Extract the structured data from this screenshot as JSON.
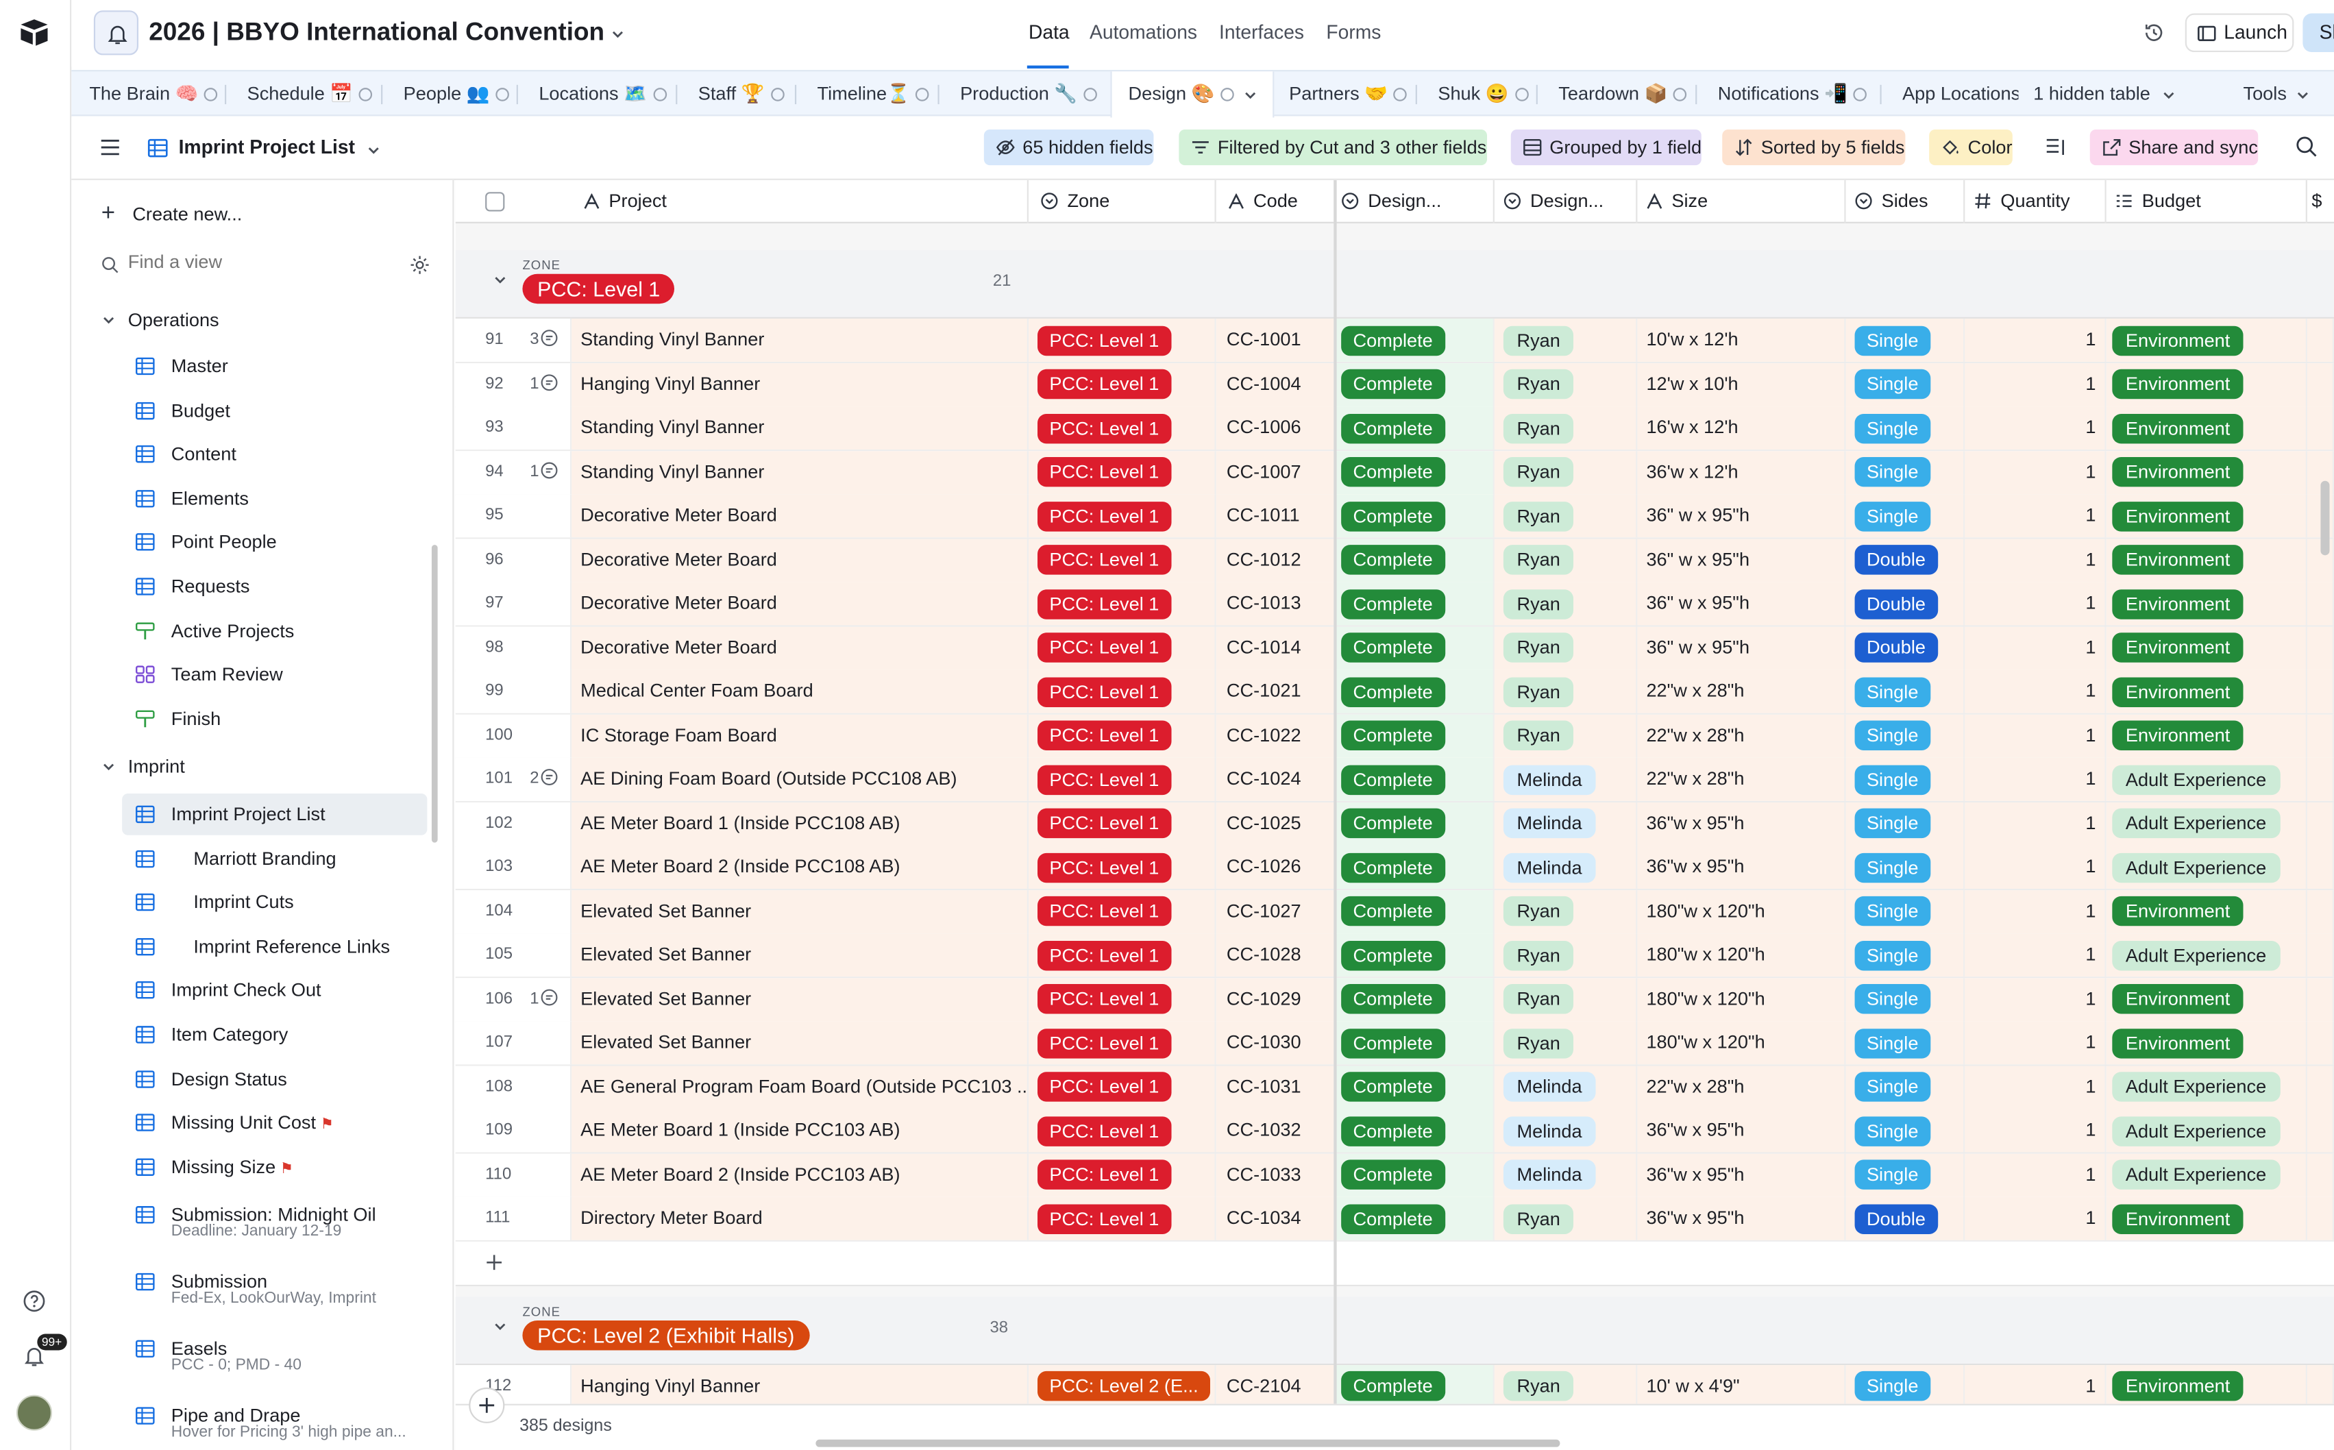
{
  "header": {
    "base_title": "2026 | BBYO International Convention",
    "nav": [
      "Data",
      "Automations",
      "Interfaces",
      "Forms"
    ],
    "active_nav": "Data",
    "launch_label": "Launch",
    "share_label": "Share",
    "notifications_badge": "99+"
  },
  "tabs": [
    {
      "label": "The Brain 🧠"
    },
    {
      "label": "Schedule 📅"
    },
    {
      "label": "People 👥"
    },
    {
      "label": "Locations 🗺️"
    },
    {
      "label": "Staff 🏆"
    },
    {
      "label": "Timeline⏳"
    },
    {
      "label": "Production 🔧"
    },
    {
      "label": "Design 🎨"
    },
    {
      "label": "Partners 🤝"
    },
    {
      "label": "Shuk 😀"
    },
    {
      "label": "Teardown 📦"
    },
    {
      "label": "Notifications 📲"
    },
    {
      "label": "App Locations"
    }
  ],
  "hidden_tables_label": "1 hidden table",
  "tools_label": "Tools",
  "toolbar": {
    "view_name": "Imprint Project List",
    "hidden_fields": "65 hidden fields",
    "filter": "Filtered by Cut and 3 other fields",
    "group": "Grouped by 1 field",
    "sort": "Sorted by 5 fields",
    "color": "Color",
    "share_sync": "Share and sync"
  },
  "sidebar": {
    "create_new": "Create new...",
    "find_placeholder": "Find a view",
    "sections": [
      {
        "title": "Operations",
        "items": [
          "Master",
          "Budget",
          "Content",
          "Elements",
          "Point People",
          "Requests",
          "Active Projects",
          "Team Review",
          "Finish"
        ]
      },
      {
        "title": "Imprint",
        "items": [
          "Imprint Project List",
          "Marriott Branding",
          "Imprint Cuts",
          "Imprint Reference Links",
          "Imprint Check Out",
          "Item Category",
          "Design Status",
          "Missing Unit Cost",
          "Missing Size"
        ]
      }
    ],
    "two_line_items": [
      {
        "label": "Submission: Midnight Oil",
        "sub": "Deadline: January 12-19"
      },
      {
        "label": "Submission",
        "sub": "Fed-Ex, LookOurWay, Imprint"
      },
      {
        "label": "Easels",
        "sub": "PCC - 0; PMD - 40"
      },
      {
        "label": "Pipe and Drape",
        "sub": "Hover for Pricing 3' high pipe an..."
      }
    ]
  },
  "columns": [
    "Project",
    "Zone",
    "Code",
    "Design...",
    "Design...",
    "Size",
    "Sides",
    "Quantity",
    "Budget"
  ],
  "groups": [
    {
      "label": "ZONE",
      "name": "PCC: Level 1",
      "count": "21",
      "rows": [
        {
          "n": "91",
          "c": "3",
          "project": "Standing Vinyl Banner",
          "zone": "PCC: Level 1",
          "code": "CC-1001",
          "status": "Complete",
          "designer": "Ryan",
          "size": "10'w x 12'h",
          "sides": "Single",
          "qty": "1",
          "budget": "Environment"
        },
        {
          "n": "92",
          "c": "1",
          "project": "Hanging Vinyl Banner",
          "zone": "PCC: Level 1",
          "code": "CC-1004",
          "status": "Complete",
          "designer": "Ryan",
          "size": "12'w x 10'h",
          "sides": "Single",
          "qty": "1",
          "budget": "Environment"
        },
        {
          "n": "93",
          "c": "",
          "project": "Standing Vinyl Banner",
          "zone": "PCC: Level 1",
          "code": "CC-1006",
          "status": "Complete",
          "designer": "Ryan",
          "size": "16'w x 12'h",
          "sides": "Single",
          "qty": "1",
          "budget": "Environment"
        },
        {
          "n": "94",
          "c": "1",
          "project": "Standing Vinyl Banner",
          "zone": "PCC: Level 1",
          "code": "CC-1007",
          "status": "Complete",
          "designer": "Ryan",
          "size": "36'w x 12'h",
          "sides": "Single",
          "qty": "1",
          "budget": "Environment"
        },
        {
          "n": "95",
          "c": "",
          "project": "Decorative Meter Board",
          "zone": "PCC: Level 1",
          "code": "CC-1011",
          "status": "Complete",
          "designer": "Ryan",
          "size": "36\" w x 95\"h",
          "sides": "Single",
          "qty": "1",
          "budget": "Environment"
        },
        {
          "n": "96",
          "c": "",
          "project": "Decorative Meter Board",
          "zone": "PCC: Level 1",
          "code": "CC-1012",
          "status": "Complete",
          "designer": "Ryan",
          "size": "36\" w x 95\"h",
          "sides": "Double",
          "qty": "1",
          "budget": "Environment"
        },
        {
          "n": "97",
          "c": "",
          "project": "Decorative Meter Board",
          "zone": "PCC: Level 1",
          "code": "CC-1013",
          "status": "Complete",
          "designer": "Ryan",
          "size": "36\" w x 95\"h",
          "sides": "Double",
          "qty": "1",
          "budget": "Environment"
        },
        {
          "n": "98",
          "c": "",
          "project": "Decorative Meter Board",
          "zone": "PCC: Level 1",
          "code": "CC-1014",
          "status": "Complete",
          "designer": "Ryan",
          "size": "36\" w x 95\"h",
          "sides": "Double",
          "qty": "1",
          "budget": "Environment"
        },
        {
          "n": "99",
          "c": "",
          "project": "Medical Center Foam Board",
          "zone": "PCC: Level 1",
          "code": "CC-1021",
          "status": "Complete",
          "designer": "Ryan",
          "size": "22\"w x 28\"h",
          "sides": "Single",
          "qty": "1",
          "budget": "Environment"
        },
        {
          "n": "100",
          "c": "",
          "project": "IC Storage Foam Board",
          "zone": "PCC: Level 1",
          "code": "CC-1022",
          "status": "Complete",
          "designer": "Ryan",
          "size": "22\"w x 28\"h",
          "sides": "Single",
          "qty": "1",
          "budget": "Environment"
        },
        {
          "n": "101",
          "c": "2",
          "project": "AE Dining Foam Board (Outside PCC108 AB)",
          "zone": "PCC: Level 1",
          "code": "CC-1024",
          "status": "Complete",
          "designer": "Melinda",
          "size": "22\"w x 28\"h",
          "sides": "Single",
          "qty": "1",
          "budget": "Adult Experience"
        },
        {
          "n": "102",
          "c": "",
          "project": "AE Meter Board 1 (Inside PCC108 AB)",
          "zone": "PCC: Level 1",
          "code": "CC-1025",
          "status": "Complete",
          "designer": "Melinda",
          "size": "36\"w x 95\"h",
          "sides": "Single",
          "qty": "1",
          "budget": "Adult Experience"
        },
        {
          "n": "103",
          "c": "",
          "project": "AE Meter Board 2 (Inside PCC108 AB)",
          "zone": "PCC: Level 1",
          "code": "CC-1026",
          "status": "Complete",
          "designer": "Melinda",
          "size": "36\"w x 95\"h",
          "sides": "Single",
          "qty": "1",
          "budget": "Adult Experience"
        },
        {
          "n": "104",
          "c": "",
          "project": "Elevated Set Banner",
          "zone": "PCC: Level 1",
          "code": "CC-1027",
          "status": "Complete",
          "designer": "Ryan",
          "size": "180\"w x 120\"h",
          "sides": "Single",
          "qty": "1",
          "budget": "Environment"
        },
        {
          "n": "105",
          "c": "",
          "project": "Elevated Set Banner",
          "zone": "PCC: Level 1",
          "code": "CC-1028",
          "status": "Complete",
          "designer": "Ryan",
          "size": "180\"w x 120\"h",
          "sides": "Single",
          "qty": "1",
          "budget": "Adult Experience"
        },
        {
          "n": "106",
          "c": "1",
          "project": "Elevated Set Banner",
          "zone": "PCC: Level 1",
          "code": "CC-1029",
          "status": "Complete",
          "designer": "Ryan",
          "size": "180\"w x 120\"h",
          "sides": "Single",
          "qty": "1",
          "budget": "Environment"
        },
        {
          "n": "107",
          "c": "",
          "project": "Elevated Set Banner",
          "zone": "PCC: Level 1",
          "code": "CC-1030",
          "status": "Complete",
          "designer": "Ryan",
          "size": "180\"w x 120\"h",
          "sides": "Single",
          "qty": "1",
          "budget": "Environment"
        },
        {
          "n": "108",
          "c": "",
          "project": "AE General Program Foam Board (Outside PCC103 ...",
          "zone": "PCC: Level 1",
          "code": "CC-1031",
          "status": "Complete",
          "designer": "Melinda",
          "size": "22\"w x 28\"h",
          "sides": "Single",
          "qty": "1",
          "budget": "Adult Experience"
        },
        {
          "n": "109",
          "c": "",
          "project": "AE Meter Board 1 (Inside PCC103 AB)",
          "zone": "PCC: Level 1",
          "code": "CC-1032",
          "status": "Complete",
          "designer": "Melinda",
          "size": "36\"w x 95\"h",
          "sides": "Single",
          "qty": "1",
          "budget": "Adult Experience"
        },
        {
          "n": "110",
          "c": "",
          "project": "AE Meter Board 2 (Inside PCC103 AB)",
          "zone": "PCC: Level 1",
          "code": "CC-1033",
          "status": "Complete",
          "designer": "Melinda",
          "size": "36\"w x 95\"h",
          "sides": "Single",
          "qty": "1",
          "budget": "Adult Experience"
        },
        {
          "n": "111",
          "c": "",
          "project": "Directory Meter Board",
          "zone": "PCC: Level 1",
          "code": "CC-1034",
          "status": "Complete",
          "designer": "Ryan",
          "size": "36\"w x 95\"h",
          "sides": "Double",
          "qty": "1",
          "budget": "Environment"
        }
      ]
    },
    {
      "label": "ZONE",
      "name": "PCC: Level 2 (Exhibit Halls)",
      "count": "38",
      "rows": [
        {
          "n": "112",
          "c": "",
          "project": "Hanging Vinyl Banner",
          "zone": "PCC: Level 2 (E...",
          "code": "CC-2104",
          "status": "Complete",
          "designer": "Ryan",
          "size": "10' w x 4'9\"",
          "sides": "Single",
          "qty": "1",
          "budget": "Environment"
        }
      ]
    }
  ],
  "footer": {
    "record_count": "385 designs"
  },
  "colors": {
    "accent": "#166ee1",
    "zone_level1": "#dc1d2d",
    "zone_level2": "#d8480f",
    "complete": "#238b3a",
    "single": "#39aee9",
    "double": "#1d5fd1"
  }
}
